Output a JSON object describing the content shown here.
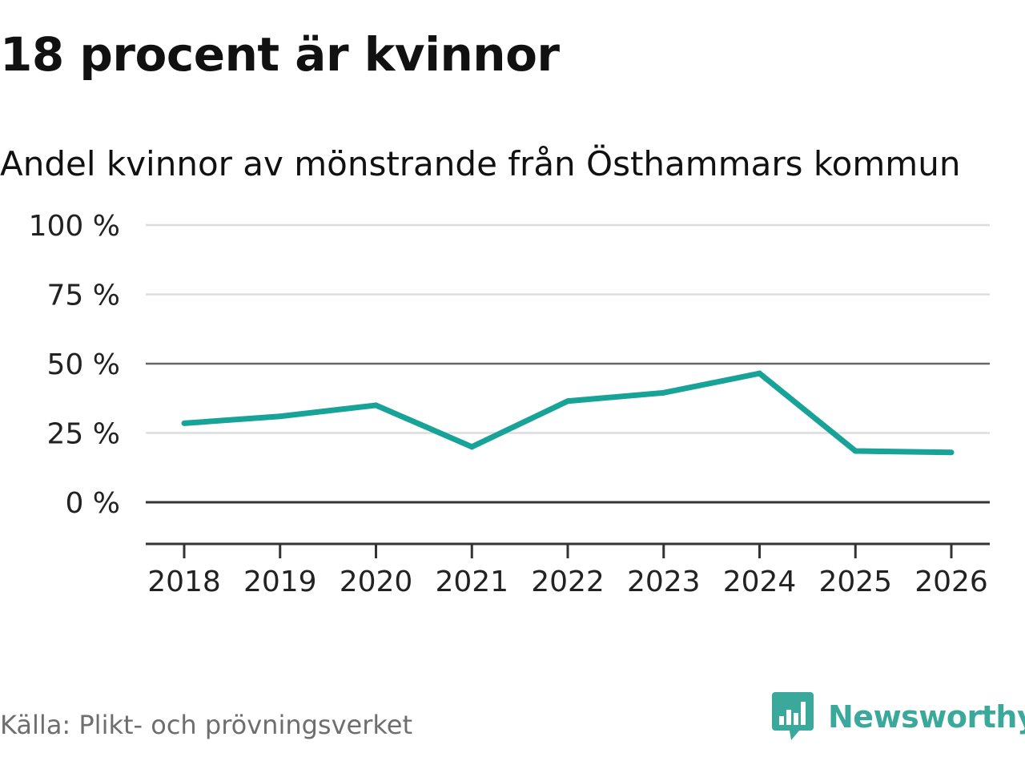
{
  "header": {
    "title": "18 procent är kvinnor",
    "subtitle": "Andel kvinnor av mönstrande från Östhammars kommun"
  },
  "footer": {
    "source": "Källa: Plikt- och prövningsverket",
    "brand": "Newsworthy",
    "brand_icon": "newsworthy-logo-icon"
  },
  "colors": {
    "line": "#17a398",
    "grid": "#dddddd",
    "ref_line": "#666666",
    "zero_line": "#333333",
    "axis": "#333333",
    "brand": "#3aa89b"
  },
  "chart_data": {
    "type": "line",
    "title": "18 procent är kvinnor",
    "subtitle": "Andel kvinnor av mönstrande från Östhammars kommun",
    "xlabel": "",
    "ylabel": "",
    "categories": [
      "2018",
      "2019",
      "2020",
      "2021",
      "2022",
      "2023",
      "2024",
      "2025",
      "2026"
    ],
    "series": [
      {
        "name": "Andel kvinnor",
        "values": [
          28.5,
          31,
          35,
          20,
          36.5,
          39.5,
          46.5,
          18.5,
          18
        ]
      }
    ],
    "yticks": [
      0,
      25,
      50,
      75,
      100
    ],
    "ytick_labels": [
      "0 %",
      "25 %",
      "50 %",
      "75 %",
      "100 %"
    ],
    "ylim": [
      -15,
      100
    ],
    "reference_line": 50,
    "grid": true,
    "legend": "none"
  }
}
